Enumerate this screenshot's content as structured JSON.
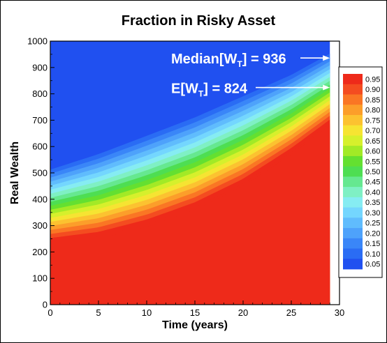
{
  "chart_data": {
    "type": "heatmap",
    "title": "Fraction in Risky Asset",
    "xlabel": "Time (years)",
    "ylabel": "Real Wealth",
    "xlim": [
      0,
      30
    ],
    "ylim": [
      0,
      1000
    ],
    "x_data_max": 29,
    "xticks": [
      0,
      5,
      10,
      15,
      20,
      25,
      30
    ],
    "yticks": [
      0,
      100,
      200,
      300,
      400,
      500,
      600,
      700,
      800,
      900,
      1000
    ],
    "contour_boundaries": {
      "description_x": [
        0,
        5,
        10,
        15,
        20,
        25,
        29
      ],
      "level_0.95_upper_wealth": [
        230,
        250,
        295,
        360,
        450,
        570,
        680
      ],
      "level_0.05_lower_wealth": [
        520,
        580,
        650,
        720,
        800,
        880,
        960
      ]
    },
    "colorbar": {
      "levels": [
        0.05,
        0.1,
        0.15,
        0.2,
        0.25,
        0.3,
        0.35,
        0.4,
        0.45,
        0.5,
        0.55,
        0.6,
        0.65,
        0.7,
        0.75,
        0.8,
        0.85,
        0.9,
        0.95
      ],
      "labels": [
        "0.05",
        "0.10",
        "0.15",
        "0.20",
        "0.25",
        "0.30",
        "0.35",
        "0.40",
        "0.45",
        "0.50",
        "0.55",
        "0.60",
        "0.65",
        "0.70",
        "0.75",
        "0.80",
        "0.85",
        "0.90",
        "0.95"
      ],
      "colors": [
        "#2050f0",
        "#2a6cf4",
        "#3a86f8",
        "#4ea2fb",
        "#60bcfd",
        "#74d6fe",
        "#86ecf2",
        "#7ff0c4",
        "#66e890",
        "#4ede52",
        "#64e030",
        "#a2ea26",
        "#d6f02c",
        "#f6e432",
        "#fcc230",
        "#fc9e2a",
        "#fa7624",
        "#f44c20",
        "#ee2a1a"
      ]
    },
    "annotations": [
      {
        "main": "Median[W",
        "sub": "T",
        "tail": "] = 936",
        "x_end": 29,
        "y": 936
      },
      {
        "main": "E[W",
        "sub": "T",
        "tail": "] = 824",
        "x_end": 29,
        "y": 824
      }
    ]
  }
}
